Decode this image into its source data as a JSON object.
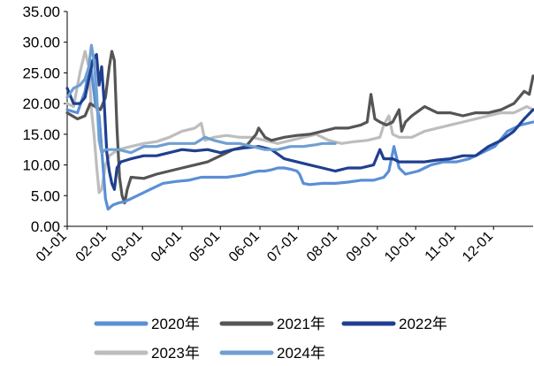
{
  "chart_data": {
    "type": "line",
    "title": "",
    "xlabel": "",
    "ylabel": "",
    "ylim": [
      0,
      35
    ],
    "yticks": [
      "0.00",
      "5.00",
      "10.00",
      "15.00",
      "20.00",
      "25.00",
      "30.00",
      "35.00"
    ],
    "xticks": [
      "01-01",
      "02-01",
      "03-01",
      "04-01",
      "05-01",
      "06-01",
      "07-01",
      "08-01",
      "09-01",
      "10-01",
      "11-01",
      "12-01"
    ],
    "grid": false,
    "legend_position": "bottom",
    "series": [
      {
        "name": "2020年",
        "color": "#5b8fd6",
        "points": [
          [
            0,
            19.0
          ],
          [
            8,
            18.5
          ],
          [
            14,
            22.0
          ],
          [
            18,
            27.0
          ],
          [
            22,
            20.0
          ],
          [
            25,
            18.0
          ],
          [
            28,
            10.0
          ],
          [
            30,
            4.5
          ],
          [
            32,
            2.8
          ],
          [
            36,
            3.5
          ],
          [
            40,
            3.8
          ],
          [
            45,
            4.0
          ],
          [
            55,
            5.0
          ],
          [
            65,
            6.0
          ],
          [
            75,
            7.0
          ],
          [
            85,
            7.3
          ],
          [
            95,
            7.5
          ],
          [
            105,
            8.0
          ],
          [
            115,
            8.0
          ],
          [
            125,
            8.0
          ],
          [
            135,
            8.3
          ],
          [
            140,
            8.5
          ],
          [
            145,
            8.8
          ],
          [
            150,
            9.0
          ],
          [
            155,
            9.0
          ],
          [
            160,
            9.2
          ],
          [
            165,
            9.5
          ],
          [
            170,
            9.5
          ],
          [
            175,
            9.3
          ],
          [
            180,
            9.0
          ],
          [
            182,
            8.5
          ],
          [
            185,
            7.0
          ],
          [
            190,
            6.8
          ],
          [
            200,
            7.0
          ],
          [
            210,
            7.0
          ],
          [
            220,
            7.2
          ],
          [
            230,
            7.5
          ],
          [
            240,
            7.5
          ],
          [
            248,
            8.0
          ],
          [
            252,
            9.0
          ],
          [
            256,
            13.0
          ],
          [
            260,
            9.5
          ],
          [
            265,
            8.5
          ],
          [
            275,
            9.0
          ],
          [
            285,
            10.0
          ],
          [
            295,
            10.5
          ],
          [
            305,
            10.5
          ],
          [
            315,
            11.0
          ],
          [
            325,
            12.0
          ],
          [
            335,
            13.0
          ],
          [
            345,
            15.5
          ],
          [
            355,
            16.5
          ],
          [
            365,
            17.0
          ]
        ]
      },
      {
        "name": "2021年",
        "color": "#555555",
        "points": [
          [
            0,
            18.5
          ],
          [
            8,
            17.5
          ],
          [
            14,
            18.0
          ],
          [
            18,
            20.0
          ],
          [
            22,
            19.5
          ],
          [
            26,
            19.0
          ],
          [
            30,
            21.0
          ],
          [
            33,
            26.0
          ],
          [
            35,
            28.5
          ],
          [
            37,
            27.0
          ],
          [
            39,
            16.0
          ],
          [
            41,
            8.0
          ],
          [
            43,
            5.0
          ],
          [
            45,
            3.8
          ],
          [
            47,
            6.0
          ],
          [
            50,
            8.0
          ],
          [
            60,
            7.8
          ],
          [
            70,
            8.5
          ],
          [
            80,
            9.0
          ],
          [
            90,
            9.5
          ],
          [
            100,
            10.0
          ],
          [
            110,
            10.5
          ],
          [
            120,
            11.5
          ],
          [
            130,
            12.5
          ],
          [
            140,
            13.0
          ],
          [
            148,
            15.0
          ],
          [
            150,
            16.0
          ],
          [
            155,
            14.5
          ],
          [
            160,
            14.0
          ],
          [
            170,
            14.5
          ],
          [
            180,
            14.8
          ],
          [
            190,
            15.0
          ],
          [
            200,
            15.5
          ],
          [
            210,
            16.0
          ],
          [
            220,
            16.0
          ],
          [
            230,
            16.5
          ],
          [
            235,
            17.0
          ],
          [
            238,
            21.5
          ],
          [
            241,
            17.5
          ],
          [
            245,
            17.0
          ],
          [
            250,
            16.5
          ],
          [
            255,
            17.0
          ],
          [
            260,
            19.0
          ],
          [
            262,
            15.5
          ],
          [
            265,
            17.0
          ],
          [
            270,
            18.0
          ],
          [
            280,
            19.5
          ],
          [
            290,
            18.5
          ],
          [
            300,
            18.5
          ],
          [
            310,
            18.0
          ],
          [
            320,
            18.5
          ],
          [
            330,
            18.5
          ],
          [
            340,
            19.0
          ],
          [
            350,
            20.0
          ],
          [
            358,
            22.0
          ],
          [
            362,
            21.5
          ],
          [
            365,
            24.5
          ]
        ]
      },
      {
        "name": "2022年",
        "color": "#1f3f8f",
        "points": [
          [
            0,
            22.5
          ],
          [
            5,
            20.0
          ],
          [
            10,
            20.0
          ],
          [
            14,
            21.0
          ],
          [
            17,
            24.0
          ],
          [
            20,
            27.0
          ],
          [
            23,
            28.0
          ],
          [
            25,
            23.0
          ],
          [
            27,
            26.0
          ],
          [
            29,
            20.0
          ],
          [
            31,
            12.0
          ],
          [
            33,
            9.0
          ],
          [
            35,
            7.0
          ],
          [
            37,
            6.0
          ],
          [
            39,
            9.5
          ],
          [
            42,
            10.5
          ],
          [
            50,
            11.0
          ],
          [
            60,
            11.5
          ],
          [
            70,
            11.5
          ],
          [
            80,
            12.0
          ],
          [
            90,
            12.5
          ],
          [
            100,
            12.3
          ],
          [
            110,
            12.5
          ],
          [
            120,
            12.0
          ],
          [
            130,
            12.5
          ],
          [
            140,
            12.8
          ],
          [
            150,
            13.0
          ],
          [
            160,
            12.5
          ],
          [
            170,
            11.0
          ],
          [
            180,
            10.5
          ],
          [
            190,
            10.0
          ],
          [
            200,
            9.5
          ],
          [
            210,
            9.0
          ],
          [
            220,
            9.5
          ],
          [
            230,
            9.5
          ],
          [
            240,
            10.0
          ],
          [
            245,
            12.5
          ],
          [
            248,
            11.0
          ],
          [
            255,
            11.0
          ],
          [
            260,
            10.5
          ],
          [
            270,
            10.5
          ],
          [
            280,
            10.5
          ],
          [
            290,
            10.8
          ],
          [
            300,
            11.0
          ],
          [
            310,
            11.5
          ],
          [
            320,
            11.5
          ],
          [
            330,
            13.0
          ],
          [
            340,
            14.0
          ],
          [
            350,
            15.5
          ],
          [
            358,
            17.5
          ],
          [
            365,
            19.0
          ]
        ]
      },
      {
        "name": "2023年",
        "color": "#bdbdbd",
        "points": [
          [
            0,
            20.0
          ],
          [
            5,
            19.5
          ],
          [
            10,
            25.0
          ],
          [
            14,
            28.5
          ],
          [
            17,
            26.0
          ],
          [
            19,
            19.0
          ],
          [
            21,
            15.0
          ],
          [
            23,
            10.0
          ],
          [
            25,
            5.5
          ],
          [
            27,
            6.0
          ],
          [
            30,
            10.0
          ],
          [
            33,
            11.5
          ],
          [
            40,
            12.5
          ],
          [
            50,
            13.0
          ],
          [
            60,
            13.5
          ],
          [
            70,
            13.8
          ],
          [
            80,
            14.5
          ],
          [
            90,
            15.5
          ],
          [
            100,
            16.0
          ],
          [
            105,
            16.8
          ],
          [
            108,
            14.0
          ],
          [
            115,
            14.5
          ],
          [
            125,
            14.8
          ],
          [
            135,
            14.5
          ],
          [
            145,
            14.5
          ],
          [
            155,
            14.0
          ],
          [
            165,
            13.5
          ],
          [
            175,
            14.0
          ],
          [
            185,
            14.5
          ],
          [
            195,
            15.0
          ],
          [
            205,
            14.0
          ],
          [
            215,
            13.5
          ],
          [
            225,
            13.8
          ],
          [
            235,
            14.0
          ],
          [
            245,
            14.5
          ],
          [
            248,
            16.5
          ],
          [
            252,
            18.0
          ],
          [
            255,
            15.0
          ],
          [
            260,
            14.5
          ],
          [
            270,
            14.5
          ],
          [
            280,
            15.5
          ],
          [
            290,
            16.0
          ],
          [
            300,
            16.5
          ],
          [
            310,
            17.0
          ],
          [
            320,
            17.5
          ],
          [
            330,
            18.0
          ],
          [
            340,
            18.5
          ],
          [
            350,
            18.5
          ],
          [
            360,
            19.5
          ],
          [
            365,
            19.0
          ]
        ]
      },
      {
        "name": "2024年",
        "color": "#6f9fd2",
        "points": [
          [
            0,
            21.0
          ],
          [
            5,
            22.5
          ],
          [
            10,
            23.0
          ],
          [
            14,
            24.0
          ],
          [
            17,
            26.0
          ],
          [
            19,
            29.5
          ],
          [
            21,
            27.0
          ],
          [
            23,
            22.0
          ],
          [
            25,
            14.0
          ],
          [
            27,
            12.0
          ],
          [
            30,
            12.5
          ],
          [
            40,
            12.5
          ],
          [
            50,
            12.0
          ],
          [
            60,
            13.0
          ],
          [
            70,
            13.0
          ],
          [
            80,
            13.5
          ],
          [
            90,
            13.5
          ],
          [
            100,
            13.5
          ],
          [
            108,
            14.5
          ],
          [
            115,
            14.0
          ],
          [
            125,
            13.5
          ],
          [
            135,
            13.5
          ],
          [
            145,
            13.0
          ],
          [
            155,
            12.5
          ],
          [
            165,
            12.5
          ],
          [
            175,
            13.0
          ],
          [
            185,
            13.0
          ],
          [
            195,
            13.3
          ],
          [
            200,
            13.5
          ],
          [
            210,
            13.5
          ]
        ]
      }
    ]
  }
}
